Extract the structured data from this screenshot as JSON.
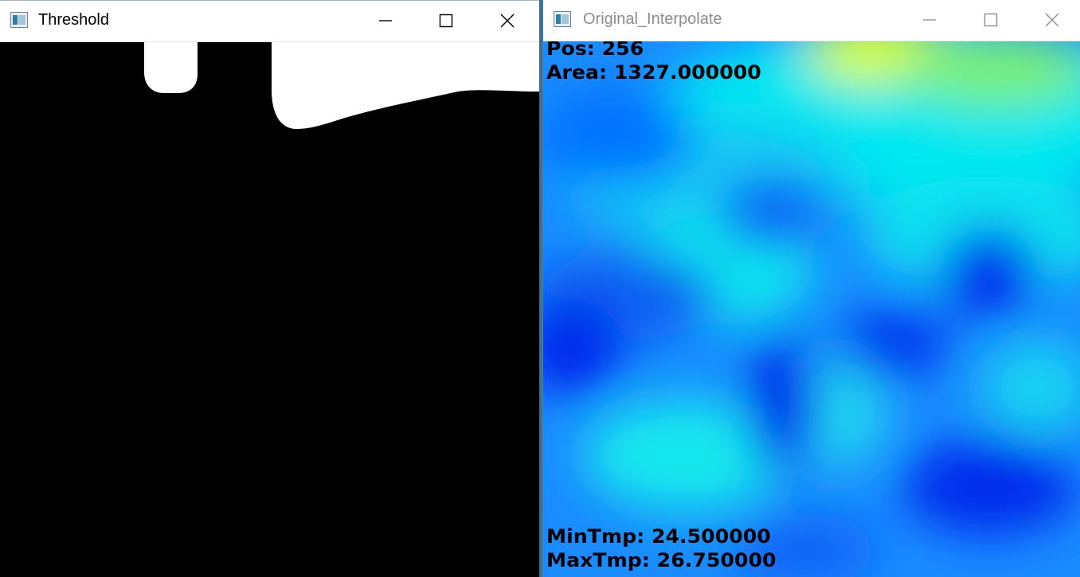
{
  "threshold_window": {
    "title": "Threshold",
    "controls": {
      "minimize": "minimize-icon",
      "maximize": "maximize-icon",
      "close": "close-icon"
    }
  },
  "interp_window": {
    "title": "Original_Interpolate",
    "controls": {
      "minimize": "minimize-icon",
      "maximize": "maximize-icon",
      "close": "close-icon"
    },
    "overlay": {
      "pos": "Pos: 256",
      "area": "Area: 1327.000000",
      "min_tmp": "MinTmp: 24.500000",
      "max_tmp": "MaxTmp: 26.750000"
    }
  },
  "colors": {
    "threshold_background": "#000000",
    "threshold_foreground": "#ffffff",
    "heatmap_low": "#0022ee",
    "heatmap_mid": "#00e8f0",
    "heatmap_high": "#d8ff2a"
  }
}
